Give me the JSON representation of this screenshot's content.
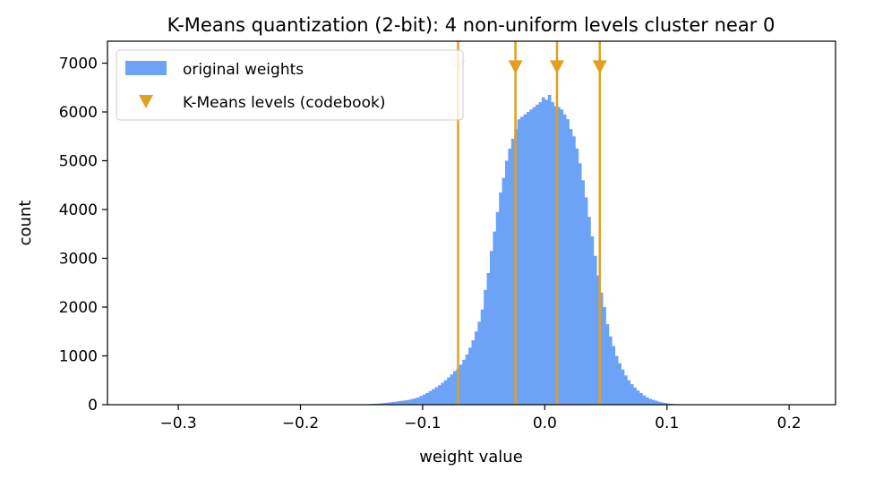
{
  "chart_data": {
    "type": "bar",
    "title": "K-Means quantization (2-bit): 4 non-uniform levels cluster near 0",
    "xlabel": "weight value",
    "ylabel": "count",
    "xlim": [
      -0.358,
      0.238
    ],
    "ylim": [
      0,
      7450
    ],
    "xticks": [
      -0.3,
      -0.2,
      -0.1,
      0.0,
      0.1,
      0.2
    ],
    "xtick_labels": [
      "−0.3",
      "−0.2",
      "−0.1",
      "0.0",
      "0.1",
      "0.2"
    ],
    "yticks": [
      0,
      1000,
      2000,
      3000,
      4000,
      5000,
      6000,
      7000
    ],
    "ytick_labels": [
      "0",
      "1000",
      "2000",
      "3000",
      "4000",
      "5000",
      "6000",
      "7000"
    ],
    "grid": false,
    "legend_position": "top-left",
    "series": [
      {
        "name": "original weights",
        "color": "#6ca3f7",
        "bin_width": 0.0025,
        "bins": [
          [
            -0.15,
            5
          ],
          [
            -0.1475,
            8
          ],
          [
            -0.145,
            10
          ],
          [
            -0.1425,
            15
          ],
          [
            -0.14,
            18
          ],
          [
            -0.1375,
            22
          ],
          [
            -0.135,
            28
          ],
          [
            -0.1325,
            35
          ],
          [
            -0.13,
            42
          ],
          [
            -0.1275,
            50
          ],
          [
            -0.125,
            58
          ],
          [
            -0.1225,
            65
          ],
          [
            -0.12,
            75
          ],
          [
            -0.1175,
            82
          ],
          [
            -0.115,
            90
          ],
          [
            -0.1125,
            100
          ],
          [
            -0.11,
            115
          ],
          [
            -0.1075,
            130
          ],
          [
            -0.105,
            150
          ],
          [
            -0.1025,
            180
          ],
          [
            -0.1,
            210
          ],
          [
            -0.0975,
            240
          ],
          [
            -0.095,
            280
          ],
          [
            -0.0925,
            320
          ],
          [
            -0.09,
            360
          ],
          [
            -0.0875,
            400
          ],
          [
            -0.085,
            450
          ],
          [
            -0.0825,
            500
          ],
          [
            -0.08,
            560
          ],
          [
            -0.0775,
            620
          ],
          [
            -0.075,
            690
          ],
          [
            -0.0725,
            740
          ],
          [
            -0.07,
            820
          ],
          [
            -0.0675,
            920
          ],
          [
            -0.065,
            1030
          ],
          [
            -0.0625,
            1170
          ],
          [
            -0.06,
            1320
          ],
          [
            -0.0575,
            1500
          ],
          [
            -0.055,
            1700
          ],
          [
            -0.0525,
            1950
          ],
          [
            -0.05,
            2350
          ],
          [
            -0.0475,
            2700
          ],
          [
            -0.045,
            3150
          ],
          [
            -0.0425,
            3550
          ],
          [
            -0.04,
            3950
          ],
          [
            -0.0375,
            4350
          ],
          [
            -0.035,
            4650
          ],
          [
            -0.0325,
            5000
          ],
          [
            -0.03,
            5250
          ],
          [
            -0.0275,
            5450
          ],
          [
            -0.025,
            5650
          ],
          [
            -0.0225,
            5850
          ],
          [
            -0.02,
            5900
          ],
          [
            -0.0175,
            5950
          ],
          [
            -0.015,
            6000
          ],
          [
            -0.0125,
            6050
          ],
          [
            -0.01,
            6100
          ],
          [
            -0.0075,
            6150
          ],
          [
            -0.005,
            6200
          ],
          [
            -0.0025,
            6300
          ],
          [
            0.0,
            6250
          ],
          [
            0.0025,
            6350
          ],
          [
            0.005,
            6200
          ],
          [
            0.0075,
            6120
          ],
          [
            0.01,
            6100
          ],
          [
            0.0125,
            6050
          ],
          [
            0.015,
            5950
          ],
          [
            0.0175,
            5850
          ],
          [
            0.02,
            5650
          ],
          [
            0.0225,
            5500
          ],
          [
            0.025,
            5250
          ],
          [
            0.0275,
            4950
          ],
          [
            0.03,
            4600
          ],
          [
            0.0325,
            4250
          ],
          [
            0.035,
            3850
          ],
          [
            0.0375,
            3450
          ],
          [
            0.04,
            3050
          ],
          [
            0.0425,
            2650
          ],
          [
            0.045,
            2300
          ],
          [
            0.0475,
            2000
          ],
          [
            0.05,
            1650
          ],
          [
            0.0525,
            1400
          ],
          [
            0.055,
            1200
          ],
          [
            0.0575,
            1000
          ],
          [
            0.06,
            850
          ],
          [
            0.0625,
            720
          ],
          [
            0.065,
            600
          ],
          [
            0.0675,
            500
          ],
          [
            0.07,
            420
          ],
          [
            0.0725,
            350
          ],
          [
            0.075,
            290
          ],
          [
            0.0775,
            240
          ],
          [
            0.08,
            190
          ],
          [
            0.0825,
            150
          ],
          [
            0.085,
            120
          ],
          [
            0.0875,
            100
          ],
          [
            0.09,
            80
          ],
          [
            0.0925,
            60
          ],
          [
            0.095,
            45
          ],
          [
            0.0975,
            35
          ],
          [
            0.1,
            25
          ],
          [
            0.1025,
            18
          ],
          [
            0.105,
            12
          ],
          [
            0.1075,
            8
          ],
          [
            0.11,
            5
          ],
          [
            0.1125,
            3
          ],
          [
            0.115,
            2
          ],
          [
            0.1175,
            1
          ]
        ]
      },
      {
        "name": "K-Means levels (codebook)",
        "color": "#e0a020",
        "levels": [
          -0.071,
          -0.024,
          0.01,
          0.045
        ],
        "marker_y": 6930
      }
    ]
  }
}
